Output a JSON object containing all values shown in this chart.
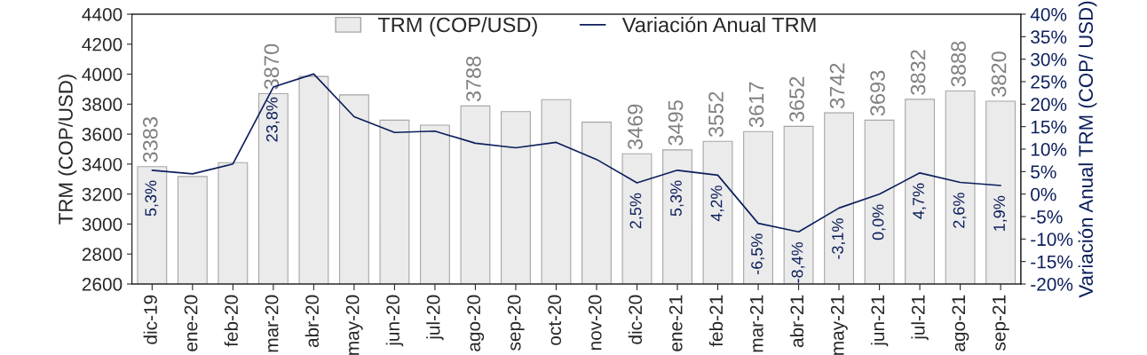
{
  "chart_data": {
    "type": "bar",
    "ylabel": "TRM (COP/USD)",
    "y2label": "Variación Anual TRM (COP/ USD)",
    "categories": [
      "dic-19",
      "ene-20",
      "feb-20",
      "mar-20",
      "abr-20",
      "may-20",
      "jun-20",
      "jul-20",
      "ago-20",
      "sep-20",
      "oct-20",
      "nov-20",
      "dic-20",
      "ene-21",
      "feb-21",
      "mar-21",
      "abr-21",
      "may-21",
      "jun-21",
      "jul-21",
      "ago-21",
      "sep-21"
    ],
    "series": [
      {
        "name": "TRM (COP/USD)",
        "color": "#ebebeb",
        "values": [
          3383,
          3317,
          3410,
          3870,
          3985,
          3862,
          3693,
          3660,
          3788,
          3750,
          3830,
          3680,
          3469,
          3495,
          3552,
          3617,
          3652,
          3742,
          3693,
          3832,
          3888,
          3820
        ],
        "value_labels": [
          "3383",
          null,
          null,
          "3870",
          null,
          null,
          null,
          null,
          "3788",
          null,
          null,
          null,
          "3469",
          "3495",
          "3552",
          "3617",
          "3652",
          "3742",
          "3693",
          "3832",
          "3888",
          "3820"
        ]
      },
      {
        "name": "Variación Anual TRM",
        "type": "line",
        "axis": "y2",
        "color": "#0d1f5c",
        "values": [
          5.3,
          4.5,
          6.7,
          23.8,
          26.7,
          17.2,
          13.7,
          14.0,
          11.3,
          10.3,
          11.5,
          7.7,
          2.5,
          5.3,
          4.2,
          -6.5,
          -8.4,
          -3.1,
          0.0,
          4.7,
          2.6,
          1.9
        ],
        "value_labels": [
          "5,3%",
          null,
          null,
          "23,8%",
          null,
          null,
          null,
          null,
          null,
          null,
          null,
          null,
          "2,5%",
          "5,3%",
          "4,2%",
          "-6,5%",
          "-8,4%",
          "-3,1%",
          "0,0%",
          "4,7%",
          "2,6%",
          "1,9%"
        ]
      }
    ],
    "ylim": [
      2600,
      4400
    ],
    "yticks": [
      2600,
      2800,
      3000,
      3200,
      3400,
      3600,
      3800,
      4000,
      4200,
      4400
    ],
    "y2lim": [
      -20,
      40
    ],
    "y2ticks": [
      {
        "value": -20,
        "label": "-20%"
      },
      {
        "value": -15,
        "label": "-15%"
      },
      {
        "value": -10,
        "label": "-10%"
      },
      {
        "value": -5,
        "label": "-5%"
      },
      {
        "value": 0,
        "label": "0%"
      },
      {
        "value": 5,
        "label": "5%"
      },
      {
        "value": 10,
        "label": "10%"
      },
      {
        "value": 15,
        "label": "15%"
      },
      {
        "value": 20,
        "label": "20%"
      },
      {
        "value": 25,
        "label": "25%"
      },
      {
        "value": 30,
        "label": "30%"
      },
      {
        "value": 35,
        "label": "35%"
      },
      {
        "value": 40,
        "label": "40%"
      }
    ],
    "legend": "top",
    "grid": false,
    "marker": "none",
    "line_style": "solid"
  }
}
